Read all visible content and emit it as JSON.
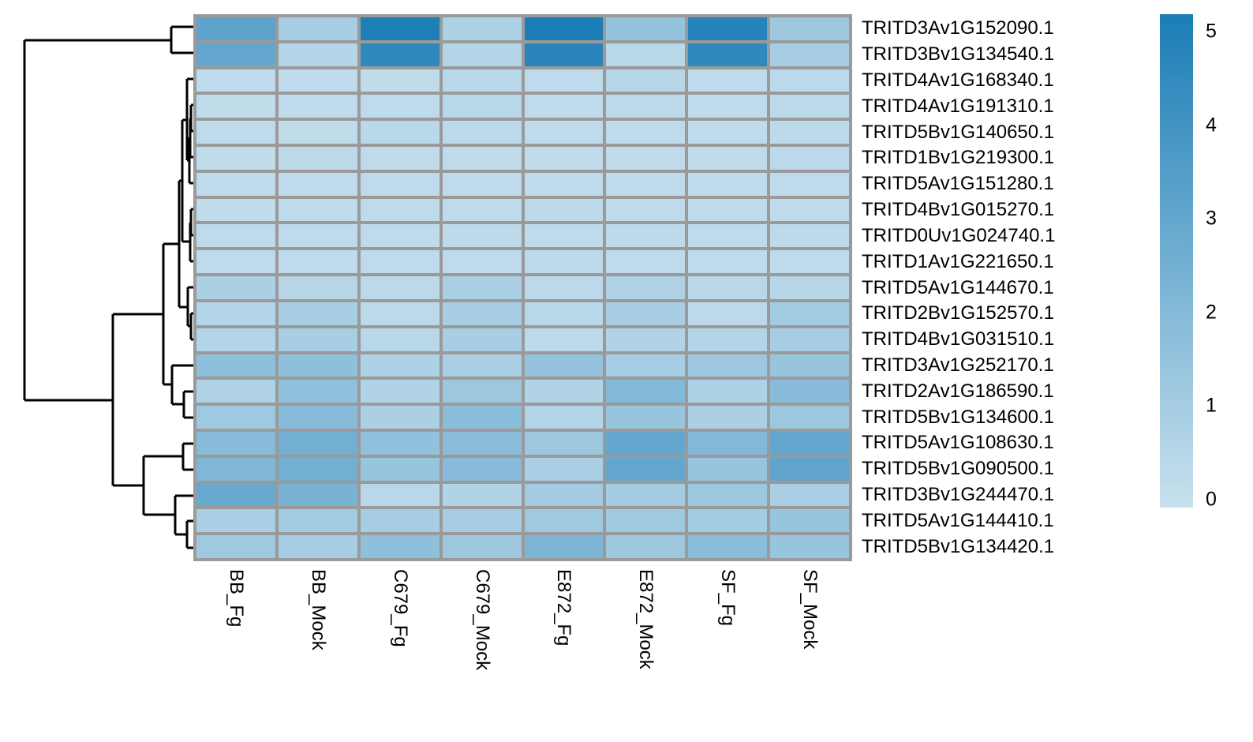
{
  "chart_data": {
    "type": "heatmap",
    "title": "",
    "legend_position": "right",
    "columns": [
      "BB_Fg",
      "BB_Mock",
      "C679_Fg",
      "C679_Mock",
      "E872_Fg",
      "E872_Mock",
      "SF_Fg",
      "SF_Mock"
    ],
    "rows": [
      "TRITD3Av1G152090.1",
      "TRITD3Bv1G134540.1",
      "TRITD4Av1G168340.1",
      "TRITD4Av1G191310.1",
      "TRITD5Bv1G140650.1",
      "TRITD1Bv1G219300.1",
      "TRITD5Av1G151280.1",
      "TRITD4Bv1G015270.1",
      "TRITD0Uv1G024740.1",
      "TRITD1Av1G221650.1",
      "TRITD5Av1G144670.1",
      "TRITD2Bv1G152570.1",
      "TRITD4Bv1G031510.1",
      "TRITD3Av1G252170.1",
      "TRITD2Av1G186590.1",
      "TRITD5Bv1G134600.1",
      "TRITD5Av1G108630.1",
      "TRITD5Bv1G090500.1",
      "TRITD3Bv1G244470.1",
      "TRITD5Av1G144410.1",
      "TRITD5Bv1G134420.1"
    ],
    "values": [
      [
        3.1,
        1.0,
        4.9,
        0.8,
        5.0,
        1.5,
        4.7,
        1.3
      ],
      [
        2.9,
        0.6,
        4.4,
        0.6,
        4.6,
        0.5,
        4.4,
        1.0
      ],
      [
        0.3,
        0.3,
        0.25,
        0.45,
        0.3,
        0.55,
        0.3,
        0.4
      ],
      [
        0.25,
        0.3,
        0.3,
        0.5,
        0.3,
        0.35,
        0.3,
        0.35
      ],
      [
        0.3,
        0.25,
        0.45,
        0.35,
        0.3,
        0.3,
        0.3,
        0.35
      ],
      [
        0.25,
        0.35,
        0.3,
        0.3,
        0.3,
        0.3,
        0.3,
        0.4
      ],
      [
        0.3,
        0.3,
        0.3,
        0.3,
        0.3,
        0.3,
        0.3,
        0.3
      ],
      [
        0.25,
        0.3,
        0.3,
        0.3,
        0.35,
        0.3,
        0.3,
        0.3
      ],
      [
        0.3,
        0.3,
        0.3,
        0.35,
        0.3,
        0.35,
        0.3,
        0.35
      ],
      [
        0.3,
        0.3,
        0.3,
        0.3,
        0.35,
        0.3,
        0.3,
        0.3
      ],
      [
        0.85,
        0.55,
        0.4,
        0.9,
        0.4,
        0.75,
        0.5,
        0.55
      ],
      [
        0.6,
        0.95,
        0.35,
        0.95,
        0.5,
        0.95,
        0.4,
        1.1
      ],
      [
        0.6,
        0.95,
        0.5,
        0.95,
        0.35,
        0.7,
        0.6,
        1.0
      ],
      [
        1.7,
        1.7,
        0.8,
        0.9,
        1.5,
        1.0,
        1.3,
        1.4
      ],
      [
        0.75,
        1.65,
        0.7,
        1.3,
        0.7,
        2.0,
        0.8,
        1.9
      ],
      [
        1.2,
        1.9,
        0.85,
        1.8,
        0.65,
        1.4,
        0.85,
        1.3
      ],
      [
        1.9,
        2.5,
        1.6,
        1.8,
        1.3,
        2.9,
        2.0,
        2.9
      ],
      [
        2.1,
        2.5,
        1.4,
        1.9,
        0.9,
        2.9,
        1.4,
        3.0
      ],
      [
        2.8,
        2.3,
        0.5,
        0.7,
        1.1,
        1.1,
        1.3,
        0.9
      ],
      [
        0.9,
        1.1,
        1.0,
        1.0,
        1.2,
        1.2,
        1.1,
        1.4
      ],
      [
        1.2,
        1.0,
        1.7,
        1.3,
        2.2,
        1.3,
        1.8,
        1.4
      ]
    ],
    "color_scale": {
      "min": 0,
      "max": 5,
      "min_color": "#c9e1ee",
      "max_color": "#1b7db6"
    },
    "legend_ticks": [
      "5",
      "4",
      "3",
      "2",
      "1",
      "0"
    ],
    "grid_color": "#9a9a9a",
    "dendrogram_color": "#000000",
    "row_dendrogram": {
      "segments": [
        [
          217,
          34,
          245,
          34
        ],
        [
          217,
          67,
          245,
          67
        ],
        [
          217,
          34,
          217,
          67
        ],
        [
          31,
          51,
          217,
          51
        ],
        [
          31,
          51,
          31,
          507
        ],
        [
          31,
          507,
          143,
          507
        ],
        [
          143,
          398,
          143,
          615
        ],
        [
          143,
          398,
          207,
          398
        ],
        [
          143,
          615,
          182,
          615
        ],
        [
          207,
          309,
          207,
          487
        ],
        [
          207,
          309,
          227,
          309
        ],
        [
          207,
          487,
          218,
          487
        ],
        [
          227,
          229,
          227,
          389
        ],
        [
          227,
          229,
          231,
          229
        ],
        [
          227,
          389,
          238,
          389
        ],
        [
          231,
          152,
          231,
          306
        ],
        [
          231,
          152,
          237,
          152
        ],
        [
          231,
          306,
          241,
          306
        ],
        [
          237,
          100,
          237,
          203
        ],
        [
          237,
          100,
          245,
          100
        ],
        [
          237,
          203,
          240,
          203
        ],
        [
          240,
          174,
          240,
          232
        ],
        [
          240,
          174,
          241,
          174
        ],
        [
          240,
          232,
          245,
          232
        ],
        [
          241,
          150,
          241,
          199
        ],
        [
          241,
          150,
          242,
          150
        ],
        [
          241,
          199,
          245,
          199
        ],
        [
          242,
          133,
          242,
          166
        ],
        [
          242,
          133,
          245,
          133
        ],
        [
          242,
          166,
          245,
          166
        ],
        [
          242,
          265,
          242,
          298
        ],
        [
          242,
          265,
          245,
          265
        ],
        [
          242,
          298,
          245,
          298
        ],
        [
          241,
          282,
          241,
          331
        ],
        [
          241,
          282,
          242,
          282
        ],
        [
          241,
          331,
          245,
          331
        ],
        [
          238,
          364,
          238,
          413
        ],
        [
          238,
          364,
          245,
          364
        ],
        [
          238,
          413,
          242,
          413
        ],
        [
          242,
          397,
          242,
          430
        ],
        [
          242,
          397,
          245,
          397
        ],
        [
          242,
          430,
          245,
          430
        ],
        [
          218,
          463,
          218,
          512
        ],
        [
          218,
          463,
          245,
          463
        ],
        [
          218,
          512,
          233,
          512
        ],
        [
          233,
          496,
          233,
          529
        ],
        [
          233,
          496,
          245,
          496
        ],
        [
          233,
          529,
          245,
          529
        ],
        [
          182,
          578,
          182,
          652
        ],
        [
          182,
          578,
          232,
          578
        ],
        [
          182,
          652,
          222,
          652
        ],
        [
          232,
          562,
          232,
          595
        ],
        [
          232,
          562,
          245,
          562
        ],
        [
          232,
          595,
          245,
          595
        ],
        [
          222,
          628,
          222,
          677
        ],
        [
          222,
          628,
          245,
          628
        ],
        [
          222,
          677,
          237,
          677
        ],
        [
          237,
          660,
          237,
          694
        ],
        [
          237,
          660,
          245,
          660
        ],
        [
          237,
          694,
          245,
          694
        ]
      ]
    }
  }
}
